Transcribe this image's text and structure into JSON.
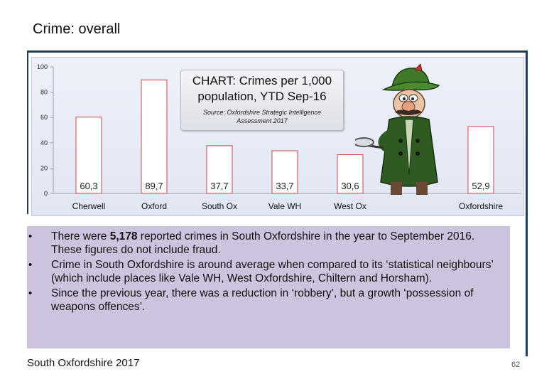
{
  "slide": {
    "title": "Crime: overall",
    "footer": "South Oxfordshire  2017",
    "page_number": "62"
  },
  "chart_box": {
    "title": "CHART: Crimes per 1,000 population, YTD Sep-16",
    "source": "Source: Oxfordshire Strategic Intelligence Assessment 2017"
  },
  "chart_data": {
    "type": "bar",
    "title": "CHART: Crimes per 1,000 population, YTD Sep-16",
    "subtitle": "Source: Oxfordshire Strategic Intelligence Assessment 2017",
    "categories": [
      "Cherwell",
      "Oxford",
      "South Ox",
      "Vale WH",
      "West Ox",
      "Oxfordshire"
    ],
    "values": [
      60.3,
      89.7,
      37.7,
      33.7,
      30.6,
      52.9
    ],
    "value_labels": [
      "60,3",
      "89,7",
      "37,7",
      "33,7",
      "30,6",
      "52,9"
    ],
    "y_ticks": [
      "0",
      "20",
      "40",
      "60",
      "80",
      "100"
    ],
    "ylim": [
      0,
      100
    ],
    "grid": false,
    "bar_color": "#ffffff",
    "bar_border": "#c8484a"
  },
  "bullets": [
    {
      "pre": "There were ",
      "bold": "5,178",
      "post": " reported crimes in South Oxfordshire in the year to September 2016.  These figures do not include fraud."
    },
    {
      "pre": "Crime in South Oxfordshire is around average when compared to its ‘statistical neighbours’ (which include places like Vale WH, West Oxfordshire, Chiltern and Horsham).",
      "bold": "",
      "post": ""
    },
    {
      "pre": "Since the previous year, there was a reduction in ‘robbery’, but a growth ‘possession of weapons offences’.",
      "bold": "",
      "post": ""
    }
  ],
  "illustration": {
    "icon": "detective-with-magnifying-glass-icon"
  }
}
